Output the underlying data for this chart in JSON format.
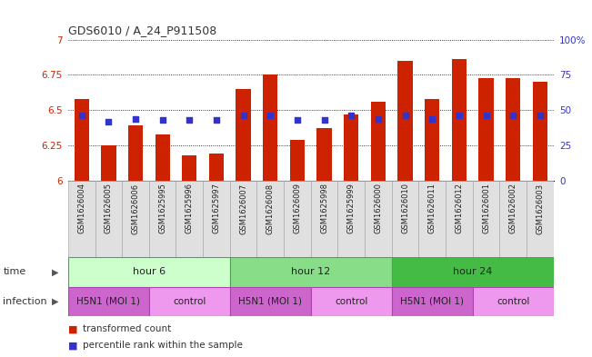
{
  "title": "GDS6010 / A_24_P911508",
  "samples": [
    "GSM1626004",
    "GSM1626005",
    "GSM1626006",
    "GSM1625995",
    "GSM1625996",
    "GSM1625997",
    "GSM1626007",
    "GSM1626008",
    "GSM1626009",
    "GSM1625998",
    "GSM1625999",
    "GSM1626000",
    "GSM1626010",
    "GSM1626011",
    "GSM1626012",
    "GSM1626001",
    "GSM1626002",
    "GSM1626003"
  ],
  "bar_values": [
    6.58,
    6.25,
    6.39,
    6.33,
    6.18,
    6.19,
    6.65,
    6.75,
    6.29,
    6.37,
    6.47,
    6.56,
    6.85,
    6.58,
    6.86,
    6.73,
    6.73,
    6.7
  ],
  "blue_values": [
    6.46,
    6.42,
    6.44,
    6.43,
    6.43,
    6.43,
    6.46,
    6.46,
    6.43,
    6.43,
    6.46,
    6.44,
    6.46,
    6.44,
    6.46,
    6.46,
    6.46,
    6.46
  ],
  "ymin": 6.0,
  "ymax": 7.0,
  "yticks": [
    6.0,
    6.25,
    6.5,
    6.75,
    7.0
  ],
  "ytick_labels": [
    "6",
    "6.25",
    "6.5",
    "6.75",
    "7"
  ],
  "right_ytick_labels": [
    "0",
    "25",
    "50",
    "75",
    "100%"
  ],
  "right_ytick_vals": [
    0.0,
    0.25,
    0.5,
    0.75,
    1.0
  ],
  "bar_color": "#CC2200",
  "blue_color": "#3333CC",
  "bg_color": "#ffffff",
  "time_groups": [
    {
      "label": "hour 6",
      "start": 0,
      "end": 6,
      "color": "#ccffcc"
    },
    {
      "label": "hour 12",
      "start": 6,
      "end": 12,
      "color": "#88dd88"
    },
    {
      "label": "hour 24",
      "start": 12,
      "end": 18,
      "color": "#44bb44"
    }
  ],
  "infection_groups": [
    {
      "label": "H5N1 (MOI 1)",
      "start": 0,
      "end": 3,
      "color": "#cc66cc"
    },
    {
      "label": "control",
      "start": 3,
      "end": 6,
      "color": "#ee99ee"
    },
    {
      "label": "H5N1 (MOI 1)",
      "start": 6,
      "end": 9,
      "color": "#cc66cc"
    },
    {
      "label": "control",
      "start": 9,
      "end": 12,
      "color": "#ee99ee"
    },
    {
      "label": "H5N1 (MOI 1)",
      "start": 12,
      "end": 15,
      "color": "#cc66cc"
    },
    {
      "label": "control",
      "start": 15,
      "end": 18,
      "color": "#ee99ee"
    }
  ],
  "legend_labels": [
    "transformed count",
    "percentile rank within the sample"
  ],
  "legend_colors": [
    "#CC2200",
    "#3333CC"
  ]
}
